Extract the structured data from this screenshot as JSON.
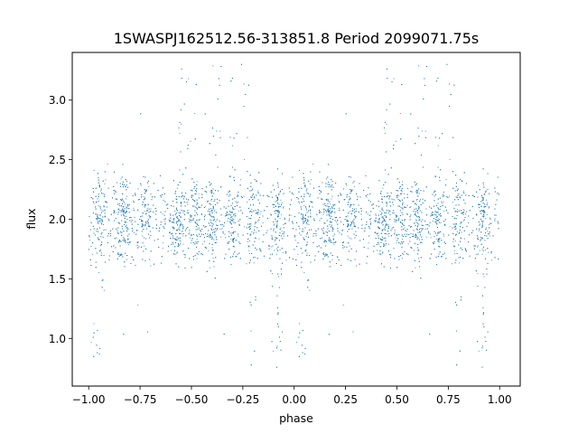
{
  "chart_data": {
    "type": "scatter",
    "title": "1SWASPJ162512.56-313851.8 Period 2099071.75s",
    "xlabel": "phase",
    "ylabel": "flux",
    "xlim": [
      -1.08,
      1.1
    ],
    "ylim": [
      0.6,
      3.4
    ],
    "x_ticks": [
      -1.0,
      -0.75,
      -0.5,
      -0.25,
      0.0,
      0.25,
      0.5,
      0.75,
      1.0
    ],
    "x_tick_labels": [
      "−1.00",
      "−0.75",
      "−0.50",
      "−0.25",
      "0.00",
      "0.25",
      "0.50",
      "0.75",
      "1.00"
    ],
    "y_ticks": [
      1.0,
      1.5,
      2.0,
      2.5,
      3.0
    ],
    "y_tick_labels": [
      "1.0",
      "1.5",
      "2.0",
      "2.5",
      "3.0"
    ],
    "grid": false,
    "marker_color": "#1f77b4",
    "folding": "phase in [0,1) duplicated to [-1,0)",
    "series": [
      {
        "distribution": "dense point cloud",
        "flux_center": 2.0,
        "flux_typical_range": [
          1.5,
          2.5
        ],
        "flux_extreme_range": [
          0.68,
          3.3
        ],
        "dense_phases": [
          0.05,
          0.17,
          0.28,
          0.44,
          0.52,
          0.6,
          0.7,
          0.8,
          0.92
        ],
        "bright_excursion_phases": [
          0.48,
          0.6,
          0.73
        ],
        "faint_excursion_phases": [
          0.0,
          0.05,
          0.78,
          0.92
        ]
      }
    ]
  }
}
